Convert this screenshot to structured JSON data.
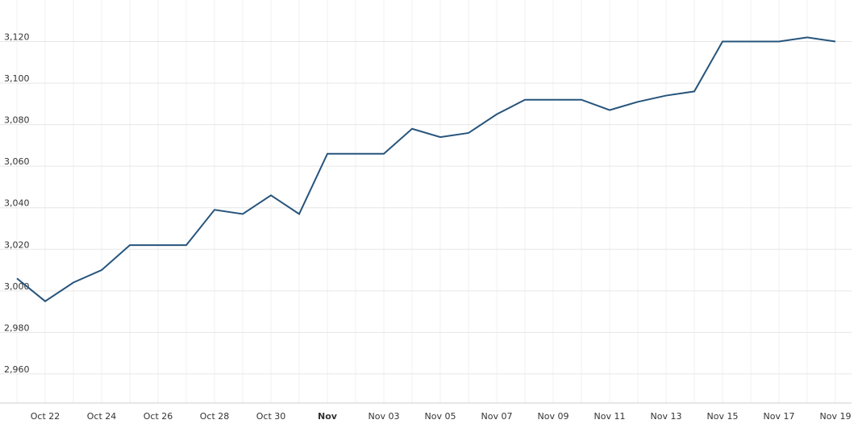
{
  "chart_data": {
    "type": "line",
    "categories": [
      null,
      "Oct 22",
      null,
      "Oct 24",
      null,
      "Oct 26",
      null,
      "Oct 28",
      null,
      "Oct 30",
      null,
      "Nov",
      null,
      "Nov 03",
      null,
      "Nov 05",
      null,
      "Nov 07",
      null,
      "Nov 09",
      null,
      "Nov 11",
      null,
      "Nov 13",
      null,
      "Nov 15",
      null,
      "Nov 17",
      null,
      "Nov 19"
    ],
    "series": [
      {
        "color": "#26547c",
        "values": [
          3006,
          2995,
          3004,
          3010,
          3022,
          3022,
          3022,
          3039,
          3037,
          3046,
          3037,
          3066,
          3066,
          3066,
          3078,
          3074,
          3076,
          3085,
          3092,
          3092,
          3092,
          3087,
          3091,
          3094,
          3096,
          3120,
          3120,
          3120,
          3122,
          3120
        ]
      }
    ],
    "ylim": [
      2946,
      3140
    ],
    "yticks": [
      {
        "value": 2960,
        "label": "2,960"
      },
      {
        "value": 2980,
        "label": "2,980"
      },
      {
        "value": 3000,
        "label": "3,000"
      },
      {
        "value": 3020,
        "label": "3,020"
      },
      {
        "value": 3040,
        "label": "3,040"
      },
      {
        "value": 3060,
        "label": "3,060"
      },
      {
        "value": 3080,
        "label": "3,080"
      },
      {
        "value": 3100,
        "label": "3,100"
      },
      {
        "value": 3120,
        "label": "3,120"
      }
    ],
    "grid": true
  }
}
